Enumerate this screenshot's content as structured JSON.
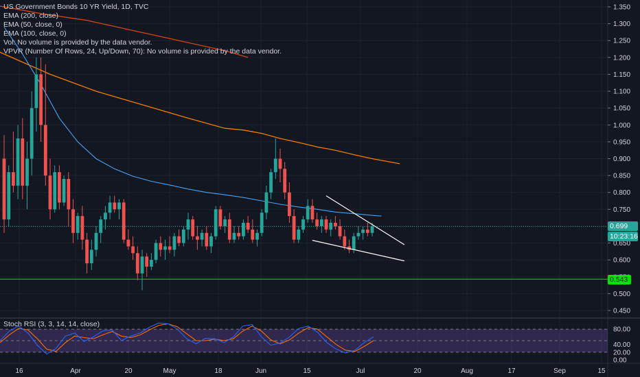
{
  "legend": {
    "title": "US Government Bonds 10 YR Yield, 1D, TVC",
    "ema200": "EMA (200, close)",
    "ema50": "EMA (50, close, 0)",
    "ema100": "EMA (100, close, 0)",
    "vol": "Vol: No volume is provided by the data vendor.",
    "vpvr": "VPVR (Number Of Rows, 24, Up/Down, 70): No volume is provided by the data vendor."
  },
  "rsi_legend": "Stoch RSI (3, 3, 14, 14, close)",
  "price_tags": {
    "last": "0.699",
    "timer": "10:23:16",
    "level": "0.543"
  },
  "colors": {
    "background": "#131722",
    "up": "#26a69a",
    "down": "#ef5350",
    "ema_orange": "#f57c00",
    "ema_red": "#d84315",
    "ema_blue": "#42a5f5",
    "level_green": "#00e500",
    "rsi_k": "#2962ff",
    "rsi_d": "#ff6d00",
    "rsi_band": "#7e57c2"
  },
  "chart_data": {
    "type": "candlestick",
    "price_axis": {
      "ticks": [
        "1.350",
        "1.300",
        "1.250",
        "1.200",
        "1.150",
        "1.100",
        "1.050",
        "1.000",
        "0.950",
        "0.900",
        "0.850",
        "0.800",
        "0.750",
        "0.700",
        "0.650",
        "0.600",
        "0.550",
        "0.500",
        "0.450"
      ]
    },
    "time_axis": {
      "ticks": [
        "16",
        "Apr",
        "20",
        "May",
        "18",
        "Jun",
        "15",
        "Jul",
        "20",
        "Aug",
        "17",
        "Sep",
        "15"
      ]
    },
    "candles": [
      {
        "o": 0.9,
        "h": 0.97,
        "l": 0.68,
        "c": 0.72
      },
      {
        "o": 0.72,
        "h": 0.88,
        "l": 0.7,
        "c": 0.86
      },
      {
        "o": 0.86,
        "h": 0.98,
        "l": 0.8,
        "c": 0.82
      },
      {
        "o": 0.82,
        "h": 1.0,
        "l": 0.78,
        "c": 0.96
      },
      {
        "o": 0.96,
        "h": 1.02,
        "l": 0.78,
        "c": 0.82
      },
      {
        "o": 0.82,
        "h": 0.95,
        "l": 0.75,
        "c": 0.9
      },
      {
        "o": 0.9,
        "h": 1.1,
        "l": 0.85,
        "c": 1.05
      },
      {
        "o": 1.05,
        "h": 1.2,
        "l": 0.98,
        "c": 1.15
      },
      {
        "o": 1.15,
        "h": 1.2,
        "l": 0.95,
        "c": 1.0
      },
      {
        "o": 1.0,
        "h": 1.18,
        "l": 0.82,
        "c": 0.85
      },
      {
        "o": 0.85,
        "h": 0.9,
        "l": 0.72,
        "c": 0.75
      },
      {
        "o": 0.75,
        "h": 0.88,
        "l": 0.74,
        "c": 0.86
      },
      {
        "o": 0.86,
        "h": 0.88,
        "l": 0.75,
        "c": 0.77
      },
      {
        "o": 0.77,
        "h": 0.85,
        "l": 0.76,
        "c": 0.84
      },
      {
        "o": 0.84,
        "h": 0.86,
        "l": 0.7,
        "c": 0.75
      },
      {
        "o": 0.75,
        "h": 0.78,
        "l": 0.65,
        "c": 0.68
      },
      {
        "o": 0.68,
        "h": 0.74,
        "l": 0.66,
        "c": 0.73
      },
      {
        "o": 0.73,
        "h": 0.76,
        "l": 0.63,
        "c": 0.66
      },
      {
        "o": 0.66,
        "h": 0.68,
        "l": 0.56,
        "c": 0.59
      },
      {
        "o": 0.59,
        "h": 0.66,
        "l": 0.57,
        "c": 0.63
      },
      {
        "o": 0.63,
        "h": 0.7,
        "l": 0.61,
        "c": 0.68
      },
      {
        "o": 0.68,
        "h": 0.73,
        "l": 0.65,
        "c": 0.72
      },
      {
        "o": 0.72,
        "h": 0.76,
        "l": 0.69,
        "c": 0.74
      },
      {
        "o": 0.74,
        "h": 0.79,
        "l": 0.72,
        "c": 0.77
      },
      {
        "o": 0.77,
        "h": 0.79,
        "l": 0.74,
        "c": 0.75
      },
      {
        "o": 0.75,
        "h": 0.78,
        "l": 0.72,
        "c": 0.77
      },
      {
        "o": 0.77,
        "h": 0.78,
        "l": 0.65,
        "c": 0.66
      },
      {
        "o": 0.66,
        "h": 0.69,
        "l": 0.63,
        "c": 0.64
      },
      {
        "o": 0.64,
        "h": 0.67,
        "l": 0.6,
        "c": 0.62
      },
      {
        "o": 0.62,
        "h": 0.64,
        "l": 0.54,
        "c": 0.56
      },
      {
        "o": 0.56,
        "h": 0.63,
        "l": 0.51,
        "c": 0.61
      },
      {
        "o": 0.61,
        "h": 0.62,
        "l": 0.55,
        "c": 0.58
      },
      {
        "o": 0.58,
        "h": 0.62,
        "l": 0.57,
        "c": 0.6
      },
      {
        "o": 0.6,
        "h": 0.66,
        "l": 0.59,
        "c": 0.65
      },
      {
        "o": 0.65,
        "h": 0.67,
        "l": 0.61,
        "c": 0.63
      },
      {
        "o": 0.63,
        "h": 0.66,
        "l": 0.6,
        "c": 0.64
      },
      {
        "o": 0.64,
        "h": 0.67,
        "l": 0.62,
        "c": 0.63
      },
      {
        "o": 0.63,
        "h": 0.68,
        "l": 0.61,
        "c": 0.67
      },
      {
        "o": 0.67,
        "h": 0.69,
        "l": 0.64,
        "c": 0.65
      },
      {
        "o": 0.65,
        "h": 0.7,
        "l": 0.64,
        "c": 0.69
      },
      {
        "o": 0.69,
        "h": 0.74,
        "l": 0.66,
        "c": 0.72
      },
      {
        "o": 0.72,
        "h": 0.73,
        "l": 0.66,
        "c": 0.67
      },
      {
        "o": 0.67,
        "h": 0.7,
        "l": 0.63,
        "c": 0.66
      },
      {
        "o": 0.66,
        "h": 0.69,
        "l": 0.64,
        "c": 0.68
      },
      {
        "o": 0.68,
        "h": 0.7,
        "l": 0.63,
        "c": 0.64
      },
      {
        "o": 0.64,
        "h": 0.68,
        "l": 0.62,
        "c": 0.67
      },
      {
        "o": 0.67,
        "h": 0.76,
        "l": 0.66,
        "c": 0.75
      },
      {
        "o": 0.75,
        "h": 0.76,
        "l": 0.69,
        "c": 0.7
      },
      {
        "o": 0.7,
        "h": 0.73,
        "l": 0.68,
        "c": 0.72
      },
      {
        "o": 0.72,
        "h": 0.74,
        "l": 0.65,
        "c": 0.66
      },
      {
        "o": 0.66,
        "h": 0.7,
        "l": 0.65,
        "c": 0.68
      },
      {
        "o": 0.68,
        "h": 0.7,
        "l": 0.66,
        "c": 0.67
      },
      {
        "o": 0.67,
        "h": 0.72,
        "l": 0.66,
        "c": 0.71
      },
      {
        "o": 0.71,
        "h": 0.73,
        "l": 0.68,
        "c": 0.69
      },
      {
        "o": 0.69,
        "h": 0.72,
        "l": 0.65,
        "c": 0.66
      },
      {
        "o": 0.66,
        "h": 0.69,
        "l": 0.64,
        "c": 0.68
      },
      {
        "o": 0.68,
        "h": 0.75,
        "l": 0.67,
        "c": 0.74
      },
      {
        "o": 0.74,
        "h": 0.82,
        "l": 0.72,
        "c": 0.8
      },
      {
        "o": 0.8,
        "h": 0.87,
        "l": 0.78,
        "c": 0.86
      },
      {
        "o": 0.86,
        "h": 0.96,
        "l": 0.84,
        "c": 0.9
      },
      {
        "o": 0.9,
        "h": 0.93,
        "l": 0.83,
        "c": 0.87
      },
      {
        "o": 0.87,
        "h": 0.89,
        "l": 0.78,
        "c": 0.8
      },
      {
        "o": 0.8,
        "h": 0.83,
        "l": 0.71,
        "c": 0.73
      },
      {
        "o": 0.73,
        "h": 0.75,
        "l": 0.65,
        "c": 0.66
      },
      {
        "o": 0.66,
        "h": 0.7,
        "l": 0.65,
        "c": 0.69
      },
      {
        "o": 0.69,
        "h": 0.73,
        "l": 0.68,
        "c": 0.72
      },
      {
        "o": 0.72,
        "h": 0.78,
        "l": 0.71,
        "c": 0.76
      },
      {
        "o": 0.76,
        "h": 0.78,
        "l": 0.71,
        "c": 0.72
      },
      {
        "o": 0.72,
        "h": 0.74,
        "l": 0.69,
        "c": 0.7
      },
      {
        "o": 0.7,
        "h": 0.73,
        "l": 0.68,
        "c": 0.72
      },
      {
        "o": 0.72,
        "h": 0.73,
        "l": 0.68,
        "c": 0.69
      },
      {
        "o": 0.69,
        "h": 0.72,
        "l": 0.67,
        "c": 0.71
      },
      {
        "o": 0.71,
        "h": 0.73,
        "l": 0.69,
        "c": 0.7
      },
      {
        "o": 0.7,
        "h": 0.72,
        "l": 0.66,
        "c": 0.67
      },
      {
        "o": 0.67,
        "h": 0.69,
        "l": 0.63,
        "c": 0.64
      },
      {
        "o": 0.64,
        "h": 0.66,
        "l": 0.62,
        "c": 0.63
      },
      {
        "o": 0.63,
        "h": 0.68,
        "l": 0.62,
        "c": 0.67
      },
      {
        "o": 0.67,
        "h": 0.7,
        "l": 0.66,
        "c": 0.68
      },
      {
        "o": 0.68,
        "h": 0.7,
        "l": 0.66,
        "c": 0.69
      },
      {
        "o": 0.69,
        "h": 0.71,
        "l": 0.67,
        "c": 0.68
      },
      {
        "o": 0.68,
        "h": 0.71,
        "l": 0.67,
        "c": 0.7
      }
    ],
    "ema_red": [
      [
        -8,
        1.37
      ],
      [
        8,
        1.33
      ],
      [
        18,
        1.31
      ],
      [
        28,
        1.28
      ],
      [
        38,
        1.25
      ],
      [
        48,
        1.22
      ],
      [
        53,
        1.2
      ]
    ],
    "ema_orange": [
      [
        -8,
        1.26
      ],
      [
        0,
        1.21
      ],
      [
        10,
        1.15
      ],
      [
        20,
        1.1
      ],
      [
        30,
        1.06
      ],
      [
        40,
        1.02
      ],
      [
        48,
        0.99
      ],
      [
        52,
        0.985
      ],
      [
        56,
        0.975
      ],
      [
        60,
        0.96
      ],
      [
        64,
        0.948
      ],
      [
        68,
        0.935
      ],
      [
        72,
        0.925
      ],
      [
        76,
        0.912
      ],
      [
        80,
        0.9
      ],
      [
        86,
        0.885
      ]
    ],
    "ema_blue": [
      [
        0,
        1.29
      ],
      [
        4,
        1.21
      ],
      [
        8,
        1.12
      ],
      [
        12,
        1.02
      ],
      [
        16,
        0.95
      ],
      [
        20,
        0.9
      ],
      [
        24,
        0.87
      ],
      [
        28,
        0.848
      ],
      [
        32,
        0.833
      ],
      [
        36,
        0.822
      ],
      [
        40,
        0.81
      ],
      [
        44,
        0.8
      ],
      [
        48,
        0.793
      ],
      [
        52,
        0.785
      ],
      [
        56,
        0.775
      ],
      [
        60,
        0.765
      ],
      [
        64,
        0.757
      ],
      [
        68,
        0.75
      ],
      [
        72,
        0.742
      ],
      [
        76,
        0.737
      ],
      [
        80,
        0.732
      ],
      [
        82,
        0.73
      ]
    ],
    "level_lines": [
      0.699,
      0.543
    ],
    "trendlines": [
      {
        "from": [
          70,
          0.79
        ],
        "to": [
          87,
          0.645
        ]
      },
      {
        "from": [
          67,
          0.658
        ],
        "to": [
          87,
          0.597
        ]
      }
    ],
    "stoch_rsi": {
      "ticks": [
        "80.00",
        "40.00",
        "20.00",
        "0.00"
      ],
      "band": [
        20,
        80
      ],
      "k": [
        [
          0,
          50
        ],
        [
          4,
          75
        ],
        [
          8,
          88
        ],
        [
          12,
          70
        ],
        [
          16,
          38
        ],
        [
          20,
          15
        ],
        [
          24,
          30
        ],
        [
          28,
          62
        ],
        [
          32,
          70
        ],
        [
          36,
          48
        ],
        [
          40,
          60
        ],
        [
          44,
          75
        ],
        [
          48,
          78
        ],
        [
          52,
          50
        ],
        [
          56,
          62
        ],
        [
          60,
          70
        ],
        [
          64,
          85
        ],
        [
          68,
          96
        ],
        [
          72,
          94
        ],
        [
          76,
          80
        ],
        [
          80,
          55
        ],
        [
          84,
          42
        ],
        [
          88,
          56
        ],
        [
          92,
          55
        ],
        [
          96,
          45
        ],
        [
          100,
          60
        ],
        [
          104,
          88
        ],
        [
          108,
          92
        ],
        [
          112,
          60
        ],
        [
          116,
          38
        ],
        [
          120,
          44
        ],
        [
          124,
          60
        ],
        [
          128,
          82
        ],
        [
          132,
          88
        ],
        [
          136,
          72
        ],
        [
          140,
          45
        ],
        [
          144,
          28
        ],
        [
          148,
          18
        ],
        [
          152,
          25
        ],
        [
          156,
          45
        ],
        [
          160,
          60
        ]
      ],
      "d": [
        [
          0,
          45
        ],
        [
          4,
          65
        ],
        [
          8,
          82
        ],
        [
          12,
          78
        ],
        [
          16,
          55
        ],
        [
          20,
          28
        ],
        [
          24,
          22
        ],
        [
          28,
          45
        ],
        [
          32,
          62
        ],
        [
          36,
          58
        ],
        [
          40,
          55
        ],
        [
          44,
          65
        ],
        [
          48,
          74
        ],
        [
          52,
          62
        ],
        [
          56,
          58
        ],
        [
          60,
          65
        ],
        [
          64,
          78
        ],
        [
          68,
          90
        ],
        [
          72,
          94
        ],
        [
          76,
          86
        ],
        [
          80,
          68
        ],
        [
          84,
          50
        ],
        [
          88,
          50
        ],
        [
          92,
          54
        ],
        [
          96,
          50
        ],
        [
          100,
          55
        ],
        [
          104,
          75
        ],
        [
          108,
          88
        ],
        [
          112,
          75
        ],
        [
          116,
          52
        ],
        [
          120,
          42
        ],
        [
          124,
          52
        ],
        [
          128,
          70
        ],
        [
          132,
          84
        ],
        [
          136,
          80
        ],
        [
          140,
          60
        ],
        [
          144,
          40
        ],
        [
          148,
          25
        ],
        [
          152,
          22
        ],
        [
          156,
          35
        ],
        [
          160,
          50
        ]
      ]
    }
  }
}
